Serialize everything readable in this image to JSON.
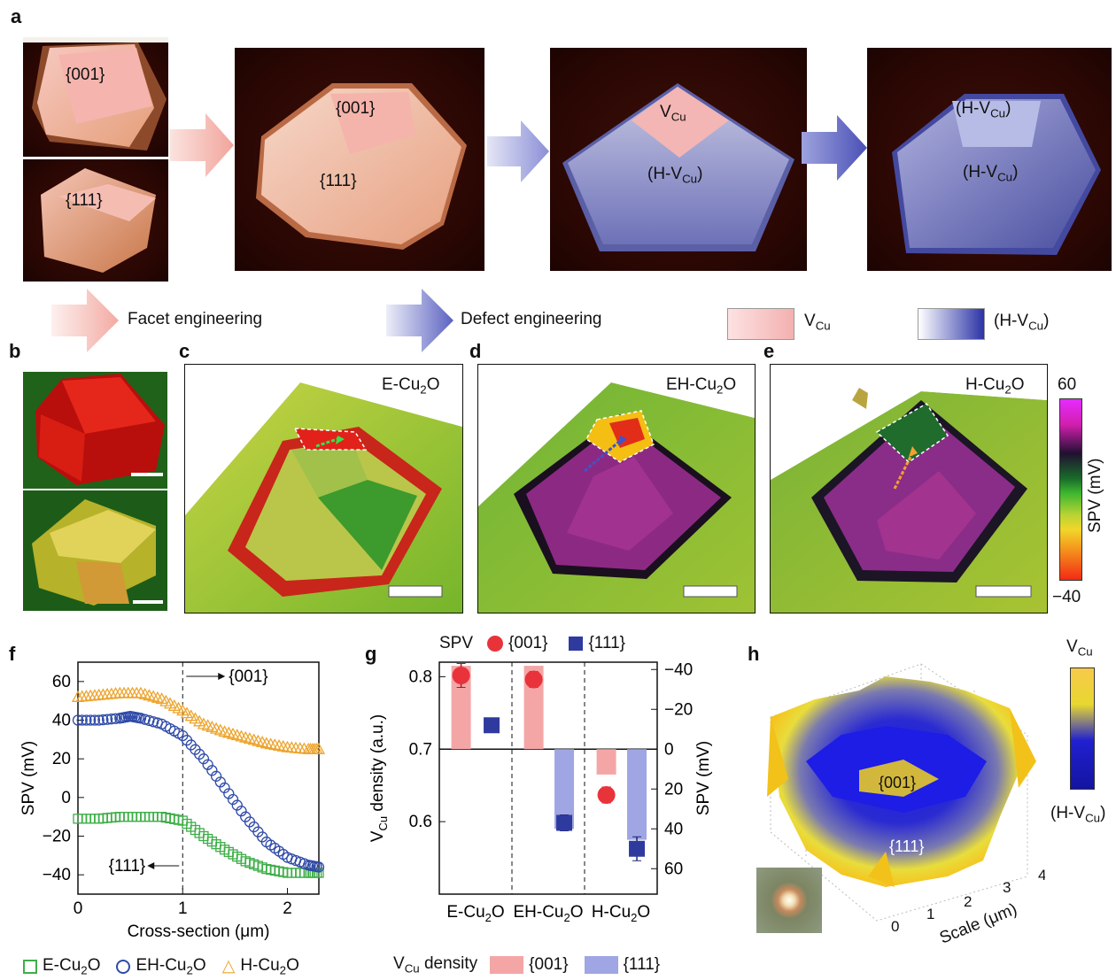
{
  "panel_letters": {
    "a": "a",
    "b": "b",
    "c": "c",
    "d": "d",
    "e": "e",
    "f": "f",
    "g": "g",
    "h": "h"
  },
  "panel_a": {
    "face_001": "{001}",
    "face_111": "{111}",
    "vcu_base": "V",
    "vcu_sub": "Cu",
    "hvcu_pre": "(H-V",
    "hvcu_sub": "Cu",
    "hvcu_post": ")",
    "arrow1_label": "Facet engineering",
    "arrow2_label": "Defect engineering",
    "legend_vcu_base": "V",
    "legend_vcu_sub": "Cu",
    "legend_hvcu_pre": "(H-V",
    "legend_hvcu_sub": "Cu",
    "legend_hvcu_post": ")",
    "colors": {
      "vcu": "#f4b6b6",
      "hvcu": "#2a33a8",
      "arrow_pink": "#f4a9a2",
      "arrow_blue": "#6a70c8"
    }
  },
  "spv_maps": {
    "c_title_pre": "E-Cu",
    "c_title_sub": "2",
    "c_title_post": "O",
    "d_title_pre": "EH-Cu",
    "d_title_sub": "2",
    "d_title_post": "O",
    "e_title_pre": "H-Cu",
    "e_title_sub": "2",
    "e_title_post": "O",
    "colorbar_max": "60",
    "colorbar_min": "−40",
    "colorbar_label": "SPV (mV)"
  },
  "panel_f": {
    "chart_data": {
      "type": "scatter",
      "xlabel": "Cross-section (μm)",
      "ylabel": "SPV (mV)",
      "xlim": [
        0,
        2.3
      ],
      "ylim": [
        -50,
        70
      ],
      "xticks": [
        "0",
        "1",
        "2"
      ],
      "yticks": [
        "60",
        "40",
        "20",
        "0",
        "−20",
        "−40"
      ],
      "annotations": [
        "{001}",
        "{111}"
      ],
      "series": [
        {
          "name": "E-Cu2O",
          "marker": "square",
          "color": "#3fae49",
          "x": [
            0.0,
            0.2,
            0.4,
            0.6,
            0.8,
            1.0,
            1.2,
            1.4,
            1.6,
            1.8,
            2.0,
            2.2,
            2.3
          ],
          "y": [
            -11,
            -11,
            -10,
            -10,
            -10,
            -12,
            -20,
            -27,
            -33,
            -37,
            -39,
            -39,
            -39
          ]
        },
        {
          "name": "EH-Cu2O",
          "marker": "circle",
          "color": "#2f4aa8",
          "x": [
            0.0,
            0.2,
            0.4,
            0.5,
            0.6,
            0.8,
            1.0,
            1.2,
            1.4,
            1.6,
            1.8,
            2.0,
            2.2,
            2.3
          ],
          "y": [
            40,
            40,
            41,
            42,
            41,
            38,
            32,
            20,
            5,
            -10,
            -23,
            -31,
            -35,
            -36
          ]
        },
        {
          "name": "H-Cu2O",
          "marker": "triangle",
          "color": "#eda52f",
          "x": [
            0.0,
            0.2,
            0.4,
            0.6,
            0.8,
            1.0,
            1.2,
            1.4,
            1.6,
            1.8,
            2.0,
            2.2,
            2.3
          ],
          "y": [
            52,
            53,
            54,
            54,
            51,
            45,
            38,
            34,
            31,
            28,
            26,
            25,
            25
          ]
        }
      ]
    },
    "legend": [
      {
        "pre": "E-Cu",
        "sub": "2",
        "post": "O"
      },
      {
        "pre": "EH-Cu",
        "sub": "2",
        "post": "O"
      },
      {
        "pre": "H-Cu",
        "sub": "2",
        "post": "O"
      }
    ]
  },
  "panel_g": {
    "chart_data": {
      "type": "bar",
      "categories": [
        "E-Cu2O",
        "EH-Cu2O",
        "H-Cu2O"
      ],
      "left_axis": {
        "label": "VCu density (a.u.)",
        "ylim": [
          0.5,
          0.82
        ],
        "ticks": [
          "0.8",
          "0.7",
          "0.6"
        ]
      },
      "right_axis": {
        "label": "SPV (mV)",
        "ticks": [
          "−40",
          "−20",
          "0",
          "20",
          "40",
          "60"
        ]
      },
      "series": [
        {
          "name": "VCu density {001}",
          "kind": "bar",
          "color": "#f4a6a6",
          "values": [
            0.815,
            0.815,
            0.665
          ]
        },
        {
          "name": "VCu density {111}",
          "kind": "bar",
          "color": "#9fa6e3",
          "values": [
            0.7,
            0.59,
            0.575
          ]
        },
        {
          "name": "SPV {001}",
          "kind": "point",
          "color": "#e8333b",
          "values": [
            -37,
            -35,
            23
          ],
          "err": [
            6,
            4,
            4
          ]
        },
        {
          "name": "SPV {111}",
          "kind": "point",
          "color": "#2f3a9f",
          "values": [
            -12,
            37,
            50
          ],
          "err": [
            3,
            4,
            6
          ]
        }
      ]
    },
    "legend_spv": "SPV",
    "legend_001": "{001}",
    "legend_111": "{111}",
    "legend_vcu_pre": "V",
    "legend_vcu_sub": "Cu",
    "legend_vcu_post": " density",
    "cat_labels": [
      {
        "pre": "E-Cu",
        "sub": "2",
        "post": "O"
      },
      {
        "pre": "EH-Cu",
        "sub": "2",
        "post": "O"
      },
      {
        "pre": "H-Cu",
        "sub": "2",
        "post": "O"
      }
    ],
    "ylabel_pre": "V",
    "ylabel_sub": "Cu",
    "ylabel_post": " density (a.u.)",
    "y2label": "SPV (mV)"
  },
  "panel_h": {
    "face_001": "{001}",
    "face_111": "{111}",
    "axis_label": "Scale (μm)",
    "axis_ticks": [
      "0",
      "1",
      "2",
      "3",
      "4"
    ],
    "cbar_top_base": "V",
    "cbar_top_sub": "Cu",
    "cbar_bottom_pre": "(H-V",
    "cbar_bottom_sub": "Cu",
    "cbar_bottom_post": ")"
  }
}
